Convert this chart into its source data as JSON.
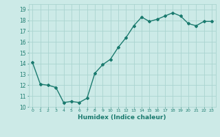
{
  "x": [
    0,
    1,
    2,
    3,
    4,
    5,
    6,
    7,
    8,
    9,
    10,
    11,
    12,
    13,
    14,
    15,
    16,
    17,
    18,
    19,
    20,
    21,
    22,
    23
  ],
  "y": [
    14.1,
    12.1,
    12.0,
    11.8,
    10.4,
    10.5,
    10.4,
    10.8,
    13.1,
    13.9,
    14.4,
    15.5,
    16.4,
    17.5,
    18.3,
    17.9,
    18.1,
    18.4,
    18.7,
    18.4,
    17.7,
    17.5,
    17.9,
    17.9
  ],
  "xlabel": "Humidex (Indice chaleur)",
  "xlim": [
    -0.5,
    23.5
  ],
  "ylim": [
    10,
    19.5
  ],
  "yticks": [
    10,
    11,
    12,
    13,
    14,
    15,
    16,
    17,
    18,
    19
  ],
  "xtick_labels": [
    "0",
    "1",
    "2",
    "3",
    "4",
    "5",
    "6",
    "7",
    "8",
    "9",
    "10",
    "11",
    "12",
    "13",
    "14",
    "15",
    "16",
    "17",
    "18",
    "19",
    "20",
    "21",
    "22",
    "23"
  ],
  "bg_color": "#cceae7",
  "line_color": "#1a7a6e",
  "grid_color": "#aad4d0",
  "tick_color": "#1a7a6e",
  "marker": "D",
  "marker_size": 2.0,
  "line_width": 1.0
}
